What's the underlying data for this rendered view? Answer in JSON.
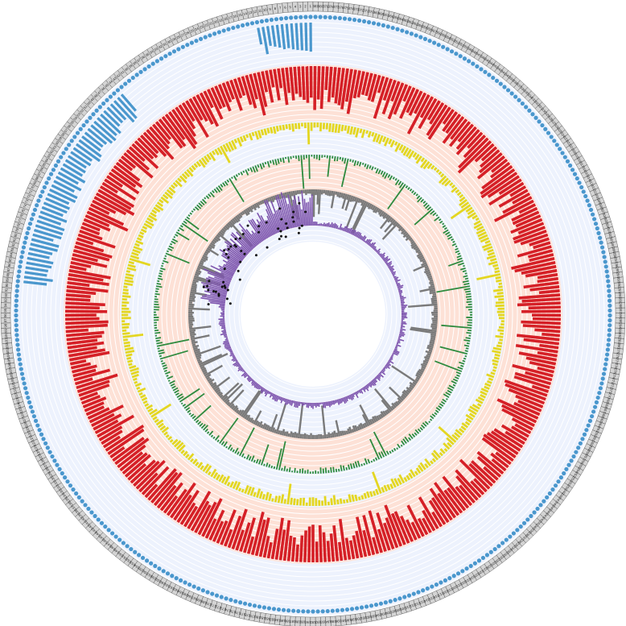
{
  "chart_data": {
    "type": "circos",
    "title": "",
    "segments": {
      "count": 381,
      "label_first": 1,
      "label_last": 381
    },
    "colors": {
      "background": "#ffffff",
      "band_blue": "#edf2fd",
      "band_salmon": "#fde1d6",
      "grid_line": "#ffffff",
      "label_box_fill": "#d4d4d4",
      "label_box_stroke": "#444444",
      "center": "#ffffff"
    },
    "tracks": [
      {
        "name": "",
        "kind": "dots",
        "color": "#4a97cd",
        "note": "uniform dots in every segment"
      },
      {
        "name": "",
        "kind": "bars",
        "color": "#4a97cd",
        "note": "tall bars only for segments 1-12 and ~44-89",
        "values_approx": [
          [
            1,
            0.95
          ],
          [
            2,
            0.92
          ],
          [
            3,
            0.9
          ],
          [
            4,
            0.88
          ],
          [
            5,
            0.85
          ],
          [
            6,
            0.8
          ],
          [
            7,
            0.82
          ],
          [
            8,
            0.75
          ],
          [
            9,
            0.7
          ],
          [
            10,
            0.65
          ],
          [
            11,
            0.9
          ],
          [
            12,
            0.55
          ]
        ]
      },
      {
        "name": "",
        "kind": "bars",
        "color": "#d52027",
        "range": [
          0,
          1
        ]
      },
      {
        "name": "",
        "kind": "bars",
        "color": "#e4d621",
        "range": [
          0,
          1
        ]
      },
      {
        "name": "",
        "kind": "bars",
        "color": "#2e8b3f",
        "range": [
          0,
          1
        ]
      },
      {
        "name": "",
        "kind": "bars",
        "color": "#7a7a7a",
        "range": [
          0,
          1
        ]
      },
      {
        "name": "",
        "kind": "bars",
        "color": "#7d54ad",
        "range": [
          0,
          1
        ]
      },
      {
        "name": "",
        "kind": "points",
        "color": "#111111",
        "note": "scattered black points near the inner ring, mostly segments 1-60"
      }
    ]
  }
}
